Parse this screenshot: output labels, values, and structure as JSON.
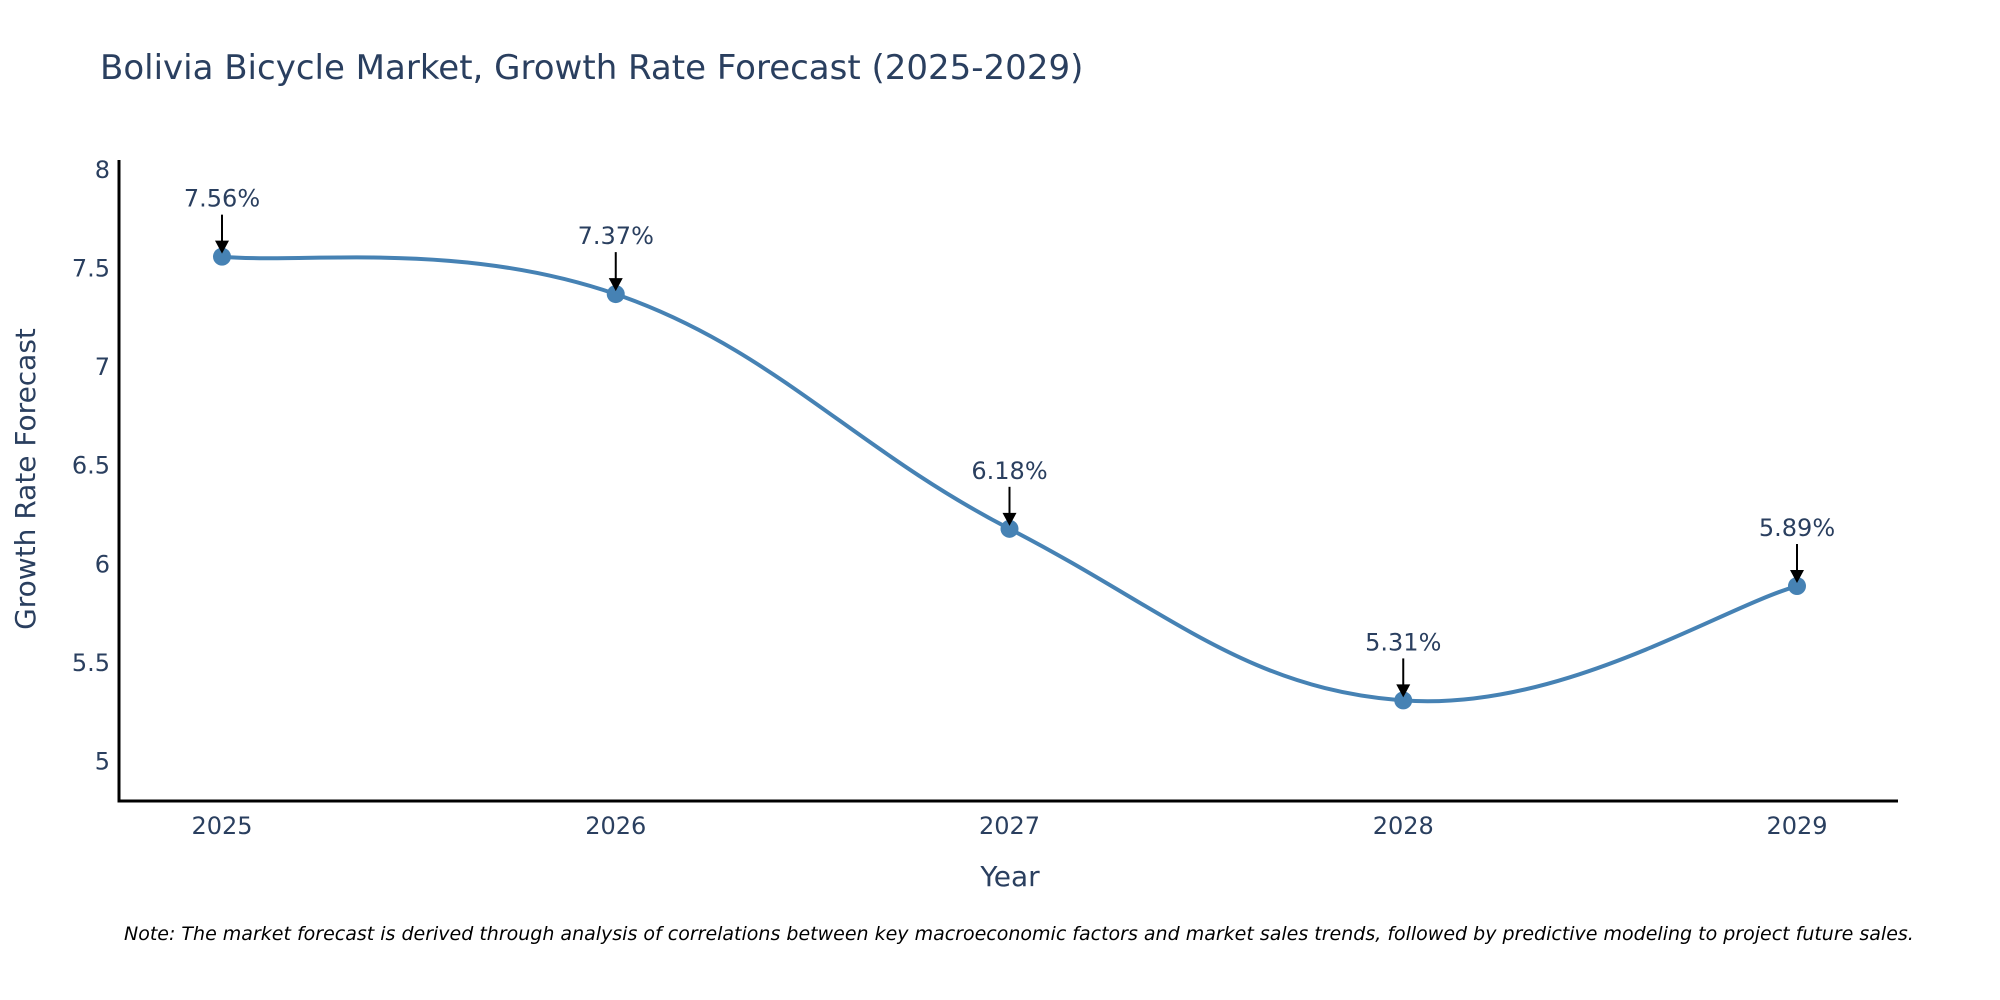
{
  "chart_data": {
    "type": "line",
    "title": "Bolivia Bicycle Market, Growth Rate Forecast (2025-2029)",
    "xlabel": "Year",
    "ylabel": "Growth Rate Forecast",
    "categories": [
      "2025",
      "2026",
      "2027",
      "2028",
      "2029"
    ],
    "series": [
      {
        "name": "Growth Rate Forecast",
        "values": [
          7.56,
          7.37,
          6.18,
          5.31,
          5.89
        ],
        "labels": [
          "7.56%",
          "7.37%",
          "6.18%",
          "5.31%",
          "5.89%"
        ],
        "color": "#4682b4",
        "line_shape": "spline"
      }
    ],
    "ylim": [
      4.8,
      8.05
    ],
    "yticks": [
      5,
      5.5,
      6,
      6.5,
      7,
      7.5,
      8
    ],
    "ytick_labels": [
      "5",
      "5.5",
      "6",
      "6.5",
      "7",
      "7.5",
      "8"
    ],
    "grid": false,
    "annotations": "arrow annotations pointing to each data point",
    "note": "Note: The market forecast is derived through analysis of correlations between key macroeconomic factors and market sales trends, followed by predictive modeling to project future sales."
  },
  "colors": {
    "line": "#4682b4",
    "text": "#2a3f5f",
    "axis": "#000000"
  }
}
